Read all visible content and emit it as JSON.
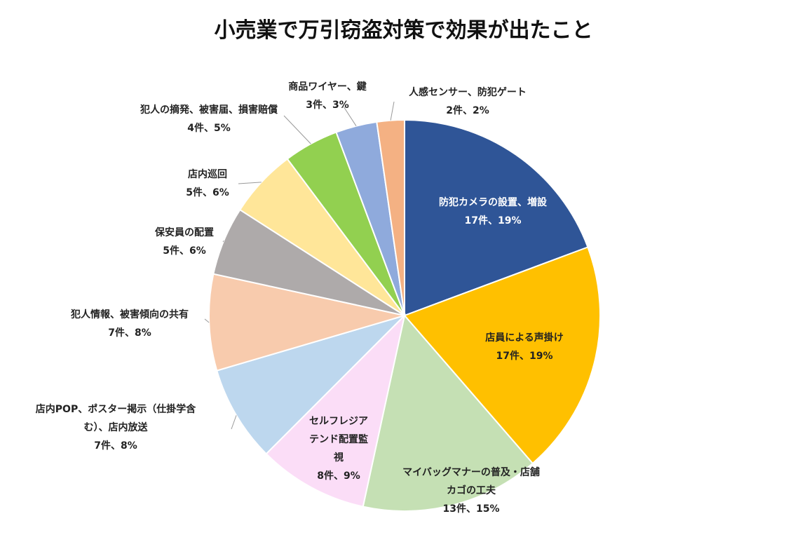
{
  "chart_data": {
    "type": "pie",
    "title": "小売業で万引窃盗対策で効果が出たこと",
    "categories": [
      "防犯カメラの設置、増設",
      "店員による声掛け",
      "マイバッグマナーの普及・店舗カゴの工夫",
      "セルフレジアテンド配置監視",
      "店内POP、ポスター掲示（仕掛学含む）、店内放送",
      "犯人情報、被害傾向の共有",
      "保安員の配置",
      "店内巡回",
      "犯人の摘発、被害届、損害賠償",
      "商品ワイヤー、鍵",
      "人感センサー、防犯ゲート"
    ],
    "values": [
      17,
      17,
      13,
      8,
      7,
      7,
      5,
      5,
      4,
      3,
      2
    ],
    "value_labels": [
      "17件、19%",
      "17件、19%",
      "13件、15%",
      "8件、9%",
      "7件、8%",
      "7件、8%",
      "5件、6%",
      "5件、6%",
      "4件、5%",
      "3件、3%",
      "2件、2%"
    ],
    "colors": [
      "#2F5597",
      "#FFC000",
      "#C5E0B4",
      "#FBDDF7",
      "#BDD7EE",
      "#F8CBAD",
      "#AEAAAA",
      "#FFE699",
      "#92D050",
      "#8FAADC",
      "#F4B183"
    ]
  }
}
